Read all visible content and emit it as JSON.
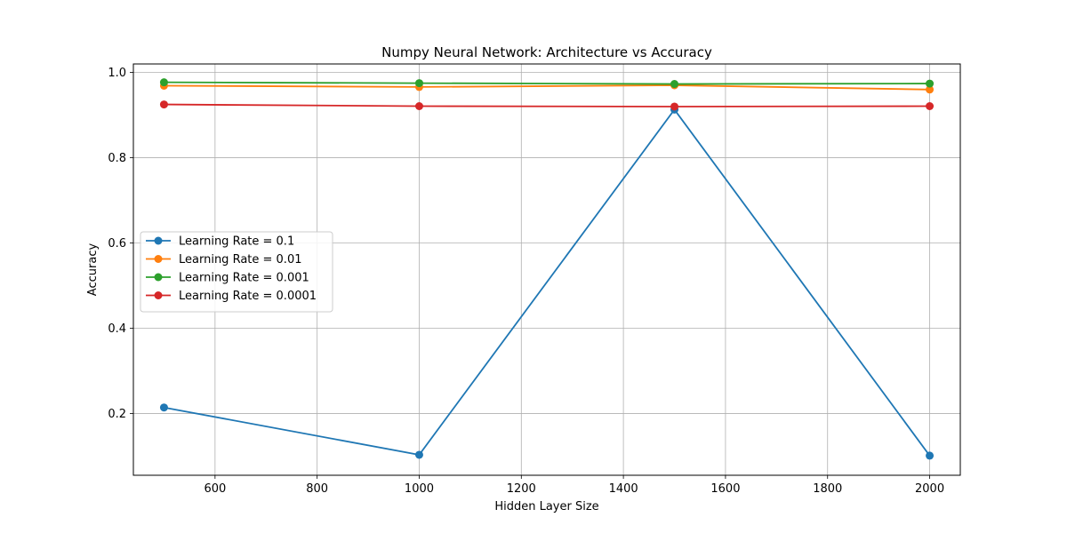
{
  "chart_data": {
    "type": "line",
    "title": "Numpy Neural Network: Architecture vs Accuracy",
    "xlabel": "Hidden Layer Size",
    "ylabel": "Accuracy",
    "x": [
      500,
      1000,
      1500,
      2000
    ],
    "xlim": [
      440,
      2060
    ],
    "ylim": [
      0.055,
      1.02
    ],
    "x_ticks": [
      600,
      800,
      1000,
      1200,
      1400,
      1600,
      1800,
      2000
    ],
    "y_ticks": [
      0.2,
      0.4,
      0.6,
      0.8,
      1.0
    ],
    "x_tick_labels": [
      "600",
      "800",
      "1000",
      "1200",
      "1400",
      "1600",
      "1800",
      "2000"
    ],
    "y_tick_labels": [
      "0.2",
      "0.4",
      "0.6",
      "0.8",
      "1.0"
    ],
    "grid": true,
    "legend_position": "center-left",
    "series": [
      {
        "name": "Learning Rate = 0.1",
        "color": "#1f77b4",
        "values": [
          0.214,
          0.103,
          0.913,
          0.101
        ]
      },
      {
        "name": "Learning Rate = 0.01",
        "color": "#ff7f0e",
        "values": [
          0.969,
          0.966,
          0.97,
          0.96
        ]
      },
      {
        "name": "Learning Rate = 0.001",
        "color": "#2ca02c",
        "values": [
          0.977,
          0.975,
          0.973,
          0.974
        ]
      },
      {
        "name": "Learning Rate = 0.0001",
        "color": "#d62728",
        "values": [
          0.925,
          0.921,
          0.92,
          0.921
        ]
      }
    ]
  }
}
